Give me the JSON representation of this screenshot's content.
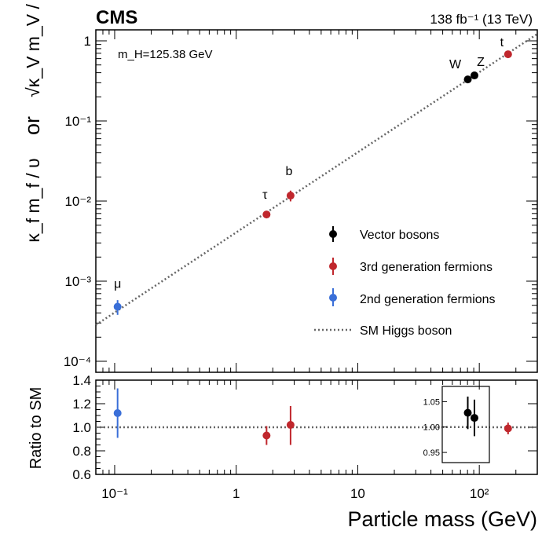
{
  "chart_data": {
    "type": "scatter",
    "experiment_label": "CMS",
    "luminosity_label": "138 fb⁻¹ (13 TeV)",
    "annotation": "m_H=125.38 GeV",
    "top_panel": {
      "ylabel_line1": "κ_f m_f / υ",
      "ylabel_or": "or",
      "ylabel_line2": "√κ_V m_V / υ",
      "y_scale": "log",
      "ylim": [
        0.0001,
        1
      ],
      "y_ticks": [
        0.0001,
        0.001,
        0.01,
        0.1,
        1
      ],
      "y_tick_labels": [
        "10⁻⁴",
        "10⁻³",
        "10⁻²",
        "10⁻¹",
        "1"
      ],
      "series": [
        {
          "name": "Vector bosons",
          "color": "#000000",
          "points": [
            {
              "label": "W",
              "x": 80.4,
              "y": 0.33,
              "err_lo": 0.01,
              "err_hi": 0.01
            },
            {
              "label": "Z",
              "x": 91.2,
              "y": 0.37,
              "err_lo": 0.01,
              "err_hi": 0.01
            }
          ]
        },
        {
          "name": "3rd generation fermions",
          "color": "#c0272d",
          "points": [
            {
              "label": "τ",
              "x": 1.777,
              "y": 0.0068,
              "err_lo": 0.0005,
              "err_hi": 0.0005
            },
            {
              "label": "b",
              "x": 2.8,
              "y": 0.0117,
              "err_lo": 0.0018,
              "err_hi": 0.0018
            },
            {
              "label": "t",
              "x": 172.5,
              "y": 0.68,
              "err_lo": 0.02,
              "err_hi": 0.02
            }
          ]
        },
        {
          "name": "2nd generation fermions",
          "color": "#3a6fd8",
          "points": [
            {
              "label": "μ",
              "x": 0.1057,
              "y": 0.00048,
              "err_lo": 0.0001,
              "err_hi": 0.0001
            }
          ]
        }
      ],
      "reference_line": {
        "name": "SM Higgs boson",
        "color": "#666666",
        "style": "dotted"
      }
    },
    "bottom_panel": {
      "ylabel": "Ratio to SM",
      "ylim": [
        0.6,
        1.4
      ],
      "y_tick_labels": [
        "0.6",
        "0.8",
        "1.0",
        "1.2",
        "1.4"
      ],
      "points": [
        {
          "x": 0.1057,
          "y": 1.12,
          "err_lo": 0.21,
          "err_hi": 0.21,
          "color": "#3a6fd8"
        },
        {
          "x": 1.777,
          "y": 0.93,
          "err_lo": 0.08,
          "err_hi": 0.08,
          "color": "#c0272d"
        },
        {
          "x": 2.8,
          "y": 1.02,
          "err_lo": 0.17,
          "err_hi": 0.16,
          "color": "#c0272d"
        },
        {
          "x": 172.5,
          "y": 0.99,
          "err_lo": 0.05,
          "err_hi": 0.05,
          "color": "#c0272d"
        }
      ],
      "inset": {
        "ylim": [
          0.93,
          1.08
        ],
        "y_tick_labels": [
          "0.95",
          "1.00",
          "1.05"
        ],
        "points": [
          {
            "x": 80.4,
            "y": 1.028,
            "err_lo": 0.032,
            "err_hi": 0.032,
            "color": "#000000"
          },
          {
            "x": 91.2,
            "y": 1.018,
            "err_lo": 0.036,
            "err_hi": 0.036,
            "color": "#000000"
          }
        ]
      }
    },
    "x_axis": {
      "xlabel": "Particle mass (GeV)",
      "x_scale": "log",
      "xlim": [
        0.07,
        300
      ],
      "x_ticks": [
        0.1,
        1,
        10,
        100
      ],
      "x_tick_labels": [
        "10⁻¹",
        "1",
        "10",
        "10²"
      ]
    },
    "legend": {
      "placement": "right",
      "entries": [
        "Vector bosons",
        "3rd generation fermions",
        "2nd generation fermions",
        "SM Higgs boson"
      ]
    }
  }
}
